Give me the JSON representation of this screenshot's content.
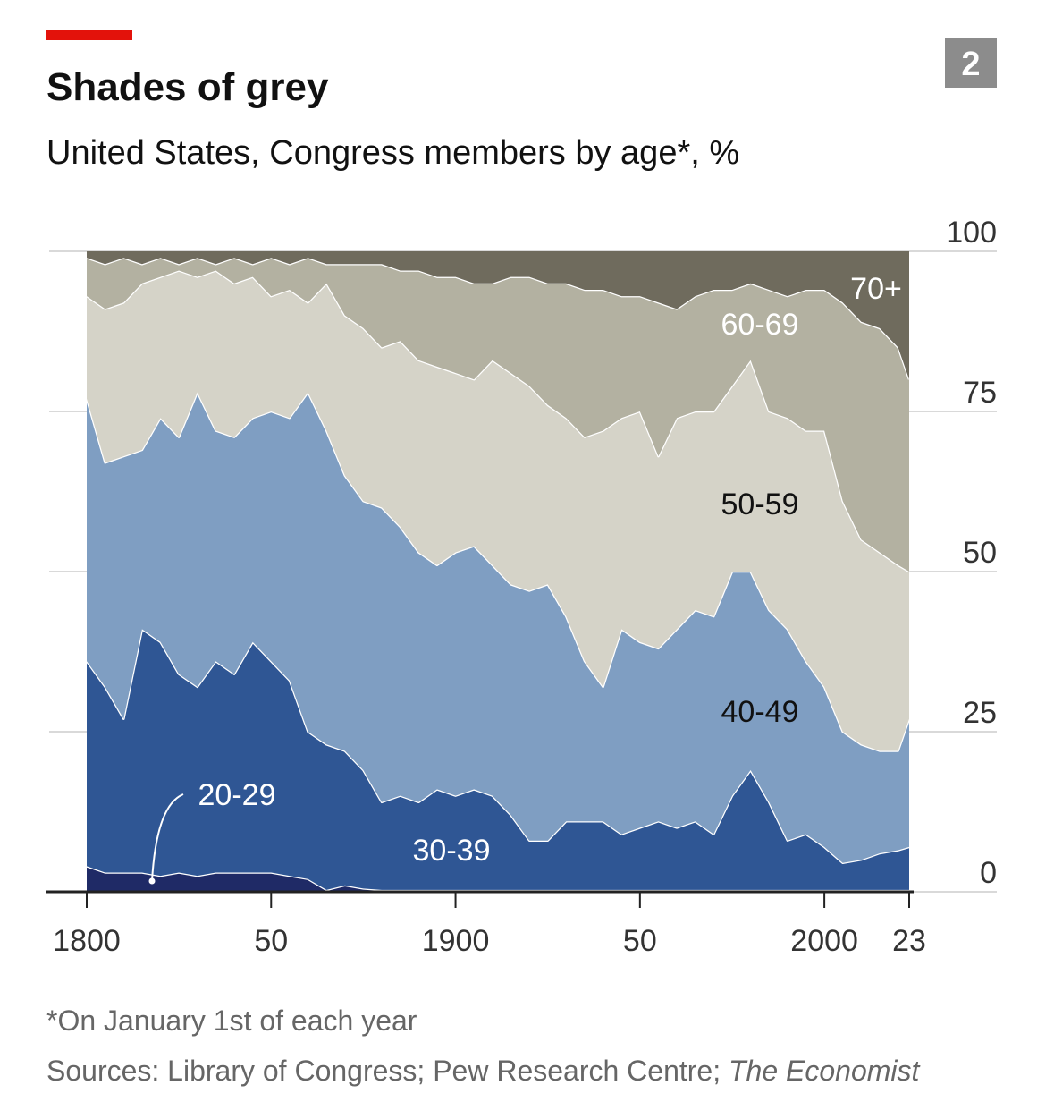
{
  "chart_data": {
    "type": "stacked_area",
    "badge": "2",
    "title": "Shades of grey",
    "subtitle": "United States, Congress members by age*, %",
    "footnote": "*On January 1st of each year",
    "source": "Sources: Library of Congress; Pew Research Centre;",
    "source_italic": "The Economist",
    "x": [
      1800,
      1805,
      1810,
      1815,
      1820,
      1825,
      1830,
      1835,
      1840,
      1845,
      1850,
      1855,
      1860,
      1865,
      1870,
      1875,
      1880,
      1885,
      1890,
      1895,
      1900,
      1905,
      1910,
      1915,
      1920,
      1925,
      1930,
      1935,
      1940,
      1945,
      1950,
      1955,
      1960,
      1965,
      1970,
      1975,
      1980,
      1985,
      1990,
      1995,
      2000,
      2005,
      2010,
      2015,
      2020,
      2023
    ],
    "xlim": [
      1800,
      2023
    ],
    "xticks": [
      1800,
      {
        "value": 1850,
        "label": "50"
      },
      1900,
      {
        "value": 1950,
        "label": "50"
      },
      2000,
      {
        "value": 2023,
        "label": "23"
      }
    ],
    "ylim": [
      0,
      100
    ],
    "yticks": [
      0,
      25,
      50,
      75,
      100
    ],
    "grid": true,
    "series": [
      {
        "name": "20-29",
        "color": "#1f2a66",
        "values": [
          4,
          3,
          3,
          3,
          2.5,
          3,
          2.5,
          3,
          3,
          3,
          3,
          2.5,
          2,
          0.3,
          1,
          0.5,
          0.3,
          0.3,
          0.3,
          0.3,
          0.3,
          0.3,
          0.3,
          0.3,
          0.3,
          0.3,
          0.3,
          0.3,
          0.3,
          0.3,
          0.3,
          0.3,
          0.3,
          0.3,
          0.3,
          0.3,
          0.3,
          0.3,
          0.3,
          0.3,
          0.3,
          0.3,
          0.3,
          0.3,
          0.3,
          0.3
        ]
      },
      {
        "name": "30-39",
        "color": "#2f5694",
        "values": [
          32,
          29,
          24,
          38,
          36.5,
          31,
          29.5,
          33,
          31,
          36,
          33,
          30.5,
          23,
          22.7,
          21,
          18.5,
          13.7,
          14.7,
          13.7,
          15.7,
          14.7,
          15.7,
          14.7,
          11.7,
          7.7,
          7.7,
          10.7,
          10.7,
          10.7,
          8.7,
          9.7,
          10.7,
          9.7,
          10.7,
          8.7,
          14.7,
          18.7,
          13.7,
          7.7,
          8.7,
          6.7,
          4.2,
          4.7,
          5.7,
          6.2,
          6.7
        ]
      },
      {
        "name": "40-49",
        "color": "#7f9ec2",
        "values": [
          41,
          35,
          41,
          28,
          35,
          37,
          46,
          36,
          37,
          35,
          39,
          41,
          53,
          49,
          43,
          42,
          46,
          42,
          39,
          35,
          38,
          38,
          36,
          36,
          39,
          40,
          32,
          25,
          21,
          32,
          29,
          27,
          31,
          33,
          34,
          35,
          31,
          30,
          33,
          27,
          25,
          20.5,
          18,
          16,
          15.5,
          20
        ]
      },
      {
        "name": "50-59",
        "color": "#d5d3c8",
        "values": [
          16,
          24,
          24,
          26,
          22,
          26,
          18,
          25,
          24,
          22,
          18,
          20,
          14,
          23,
          25,
          27,
          25,
          29,
          30,
          31,
          28,
          26,
          32,
          33,
          32,
          28,
          31,
          35,
          40,
          33,
          36,
          30,
          33,
          31,
          32,
          29,
          33,
          31,
          33,
          36,
          40,
          36,
          32,
          31,
          29,
          23
        ]
      },
      {
        "name": "60-69",
        "color": "#b3b1a1",
        "values": [
          6,
          7,
          7,
          3,
          3,
          1,
          3,
          1,
          4,
          2,
          6,
          4,
          7,
          3,
          8,
          10,
          13,
          11,
          14,
          14,
          15,
          15,
          12,
          15,
          17,
          19,
          21,
          23,
          22,
          19,
          18,
          24,
          17,
          18,
          19,
          15,
          12,
          19,
          19,
          22,
          22,
          31,
          34,
          35,
          34,
          30
        ]
      },
      {
        "name": "70+",
        "color": "#6f6b5d",
        "values": [
          1,
          2,
          1,
          2,
          1,
          2,
          1,
          2,
          1,
          2,
          1,
          2,
          1,
          2,
          2,
          2,
          2,
          3,
          3,
          4,
          4,
          5,
          5,
          4,
          4,
          5,
          5,
          6,
          6,
          7,
          7,
          8,
          9,
          7,
          6,
          6,
          5,
          6,
          7,
          6,
          6,
          8,
          11,
          12,
          15,
          20
        ]
      }
    ]
  }
}
